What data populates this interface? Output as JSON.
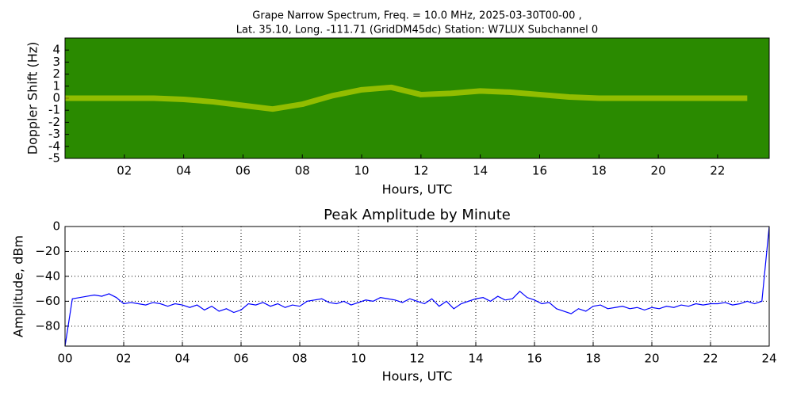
{
  "chart_data": [
    {
      "type": "spectrogram",
      "title": [
        "Grape Narrow Spectrum, Freq. = 10.0 MHz, 2025-03-30T00-00 ,",
        "Lat.  35.10, Long. -111.71 (GridDM45dc) Station: W7LUX Subchannel 0"
      ],
      "x_label": "Hours, UTC",
      "y_label": "Doppler Shift (Hz)",
      "x": [
        0,
        1,
        2,
        3,
        4,
        5,
        6,
        7,
        8,
        9,
        10,
        11,
        12,
        13,
        14,
        15,
        16,
        17,
        18,
        19,
        20,
        21,
        22,
        23
      ],
      "values": [
        0,
        0,
        0,
        0,
        -0.1,
        -0.3,
        -0.6,
        -0.9,
        -0.5,
        0.2,
        0.7,
        0.9,
        0.3,
        0.4,
        0.6,
        0.5,
        0.3,
        0.1,
        0,
        0,
        0,
        0,
        0,
        0
      ],
      "color": "#e8e800",
      "background_color": "#2a8a00",
      "xlim": [
        0,
        23.74
      ],
      "ylim": [
        -5,
        5
      ],
      "xticks": [
        {
          "value": 2,
          "label": "02"
        },
        {
          "value": 4,
          "label": "04"
        },
        {
          "value": 6,
          "label": "06"
        },
        {
          "value": 8,
          "label": "08"
        },
        {
          "value": 10,
          "label": "10"
        },
        {
          "value": 12,
          "label": "12"
        },
        {
          "value": 14,
          "label": "14"
        },
        {
          "value": 16,
          "label": "16"
        },
        {
          "value": 18,
          "label": "18"
        },
        {
          "value": 20,
          "label": "20"
        },
        {
          "value": 22,
          "label": "22"
        }
      ],
      "yticks": [
        -5,
        -4,
        -3,
        -2,
        -1,
        0,
        1,
        2,
        3,
        4
      ],
      "grid": false
    },
    {
      "type": "line",
      "title": "Peak Amplitude by Minute",
      "x_label": "Hours, UTC",
      "y_label": "Amplitude, dBm",
      "x": [
        0,
        0.25,
        0.5,
        0.75,
        1,
        1.25,
        1.5,
        1.75,
        2,
        2.25,
        2.5,
        2.75,
        3,
        3.25,
        3.5,
        3.75,
        4,
        4.25,
        4.5,
        4.75,
        5,
        5.25,
        5.5,
        5.75,
        6,
        6.25,
        6.5,
        6.75,
        7,
        7.25,
        7.5,
        7.75,
        8,
        8.25,
        8.5,
        8.75,
        9,
        9.25,
        9.5,
        9.75,
        10,
        10.25,
        10.5,
        10.75,
        11,
        11.25,
        11.5,
        11.75,
        12,
        12.25,
        12.5,
        12.75,
        13,
        13.25,
        13.5,
        13.75,
        14,
        14.25,
        14.5,
        14.75,
        15,
        15.25,
        15.5,
        15.75,
        16,
        16.25,
        16.5,
        16.75,
        17,
        17.25,
        17.5,
        17.75,
        18,
        18.25,
        18.5,
        18.75,
        19,
        19.25,
        19.5,
        19.75,
        20,
        20.25,
        20.5,
        20.75,
        21,
        21.25,
        21.5,
        21.75,
        22,
        22.25,
        22.5,
        22.75,
        23,
        23.25,
        23.5,
        23.75,
        24
      ],
      "values": [
        -96,
        -58,
        -57,
        -56,
        -55,
        -56,
        -54,
        -57,
        -62,
        -61,
        -62,
        -63,
        -61,
        -62,
        -64,
        -62,
        -63,
        -65,
        -63,
        -67,
        -64,
        -68,
        -66,
        -69,
        -67,
        -62,
        -63,
        -61,
        -64,
        -62,
        -65,
        -63,
        -64,
        -60,
        -59,
        -58,
        -61,
        -62,
        -60,
        -63,
        -61,
        -59,
        -60,
        -57,
        -58,
        -59,
        -61,
        -58,
        -60,
        -62,
        -58,
        -64,
        -60,
        -66,
        -62,
        -60,
        -58,
        -57,
        -60,
        -56,
        -59,
        -58,
        -52,
        -57,
        -59,
        -62,
        -61,
        -66,
        -68,
        -70,
        -66,
        -68,
        -64,
        -63,
        -66,
        -65,
        -64,
        -66,
        -65,
        -67,
        -65,
        -66,
        -64,
        -65,
        -63,
        -64,
        -62,
        -63,
        -62,
        -62,
        -61,
        -63,
        -62,
        -60,
        -62,
        -60,
        0
      ],
      "color": "#0000ff",
      "xlim": [
        0,
        24
      ],
      "ylim": [
        -96,
        0
      ],
      "xticks": [
        {
          "value": 0,
          "label": "00"
        },
        {
          "value": 2,
          "label": "02"
        },
        {
          "value": 4,
          "label": "04"
        },
        {
          "value": 6,
          "label": "06"
        },
        {
          "value": 8,
          "label": "08"
        },
        10,
        12,
        14,
        16,
        18,
        20,
        22,
        24
      ],
      "yticks": [
        {
          "value": -80,
          "label": "−80"
        },
        {
          "value": -60,
          "label": "−60"
        },
        {
          "value": -40,
          "label": "−40"
        },
        {
          "value": -20,
          "label": "−20"
        },
        0
      ],
      "grid": true
    }
  ]
}
